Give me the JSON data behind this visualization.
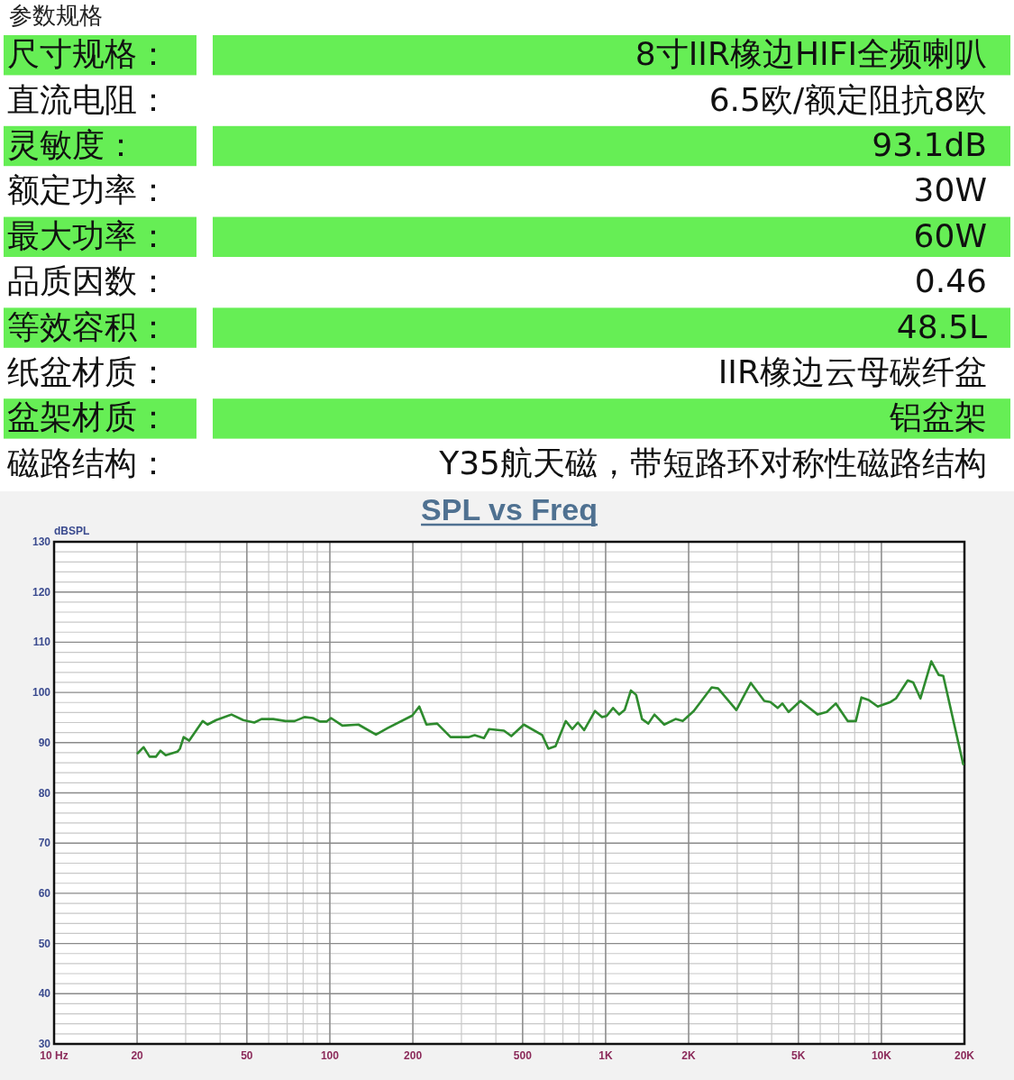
{
  "chart_data": [
    {
      "type": "other",
      "title": "参数规格",
      "annotations": [
        "尺寸规格：",
        "8寸IIR橡边HIFI全频喇叭",
        "直流电阻：",
        "6.5欧/额定阻抗8欧",
        "灵敏度：",
        "93.1dB",
        "额定功率：",
        "30W",
        "最大功率：",
        "60W",
        "品质因数：",
        "0.46",
        "等效容积：",
        "48.5L",
        "纸盆材质：",
        "IIR橡边云母碳纤盆",
        "盆架材质：",
        "铝盆架",
        "磁路结构：",
        "Y35航天磁，带短路环对称性磁路结构"
      ],
      "colors": [
        "#66ee55",
        null,
        "#66ee55",
        null,
        "#66ee55",
        null,
        "#66ee55",
        null,
        "#66ee55",
        null
      ]
    },
    {
      "type": "line",
      "title": "SPL vs Freq",
      "ylabel": "dBSPL",
      "log": "x",
      "grid": true,
      "xlim": [
        10,
        20000
      ],
      "ylim": [
        30,
        130
      ],
      "xticks": [
        {
          "value": 10,
          "label": "10 Hz"
        },
        20,
        50,
        100,
        200,
        500,
        {
          "value": 1000,
          "label": "1K"
        },
        {
          "value": 2000,
          "label": "2K"
        },
        {
          "value": 5000,
          "label": "5K"
        },
        {
          "value": 10000,
          "label": "10K"
        },
        {
          "value": 20000,
          "label": "20K"
        }
      ],
      "yticks": [
        30,
        40,
        50,
        60,
        70,
        80,
        90,
        100,
        110,
        120,
        130
      ],
      "series": [
        {
          "color": "#2e8b2e",
          "x": [
            20.1,
            21.1,
            22.2,
            23.4,
            24.3,
            25.4,
            28,
            28.6,
            29.5,
            30.9,
            34.6,
            36,
            38.7,
            44,
            48.5,
            53.2,
            56.5,
            62.3,
            69.1,
            74.5,
            80.9,
            86.7,
            92.1,
            97.2,
            101,
            111,
            127,
            147,
            162,
            199,
            211,
            224,
            245,
            274,
            318,
            335,
            362,
            378,
            428,
            455,
            505,
            589,
            620,
            658,
            717,
            757,
            793,
            836,
            915,
            971,
            1008,
            1064,
            1120,
            1172,
            1235,
            1290,
            1355,
            1428,
            1503,
            1631,
            1793,
            1903,
            2087,
            2424,
            2557,
            2979,
            3360,
            3760,
            3958,
            4206,
            4372,
            4607,
            5085,
            5876,
            6335,
            6833,
            7545,
            8077,
            8466,
            8991,
            9701,
            10790,
            11290,
            12460,
            13040,
            13850,
            15170,
            16130,
            16760,
            19800
          ],
          "values": [
            87.9,
            89.1,
            87.2,
            87.2,
            88.4,
            87.5,
            88.2,
            88.8,
            91.1,
            90.4,
            94.3,
            93.6,
            94.5,
            95.6,
            94.5,
            94.0,
            94.7,
            94.7,
            94.3,
            94.3,
            95.1,
            94.9,
            94.2,
            94.2,
            94.9,
            93.4,
            93.6,
            91.6,
            92.9,
            95.4,
            97.2,
            93.6,
            93.8,
            91.1,
            91.1,
            91.5,
            90.9,
            92.7,
            92.4,
            91.3,
            93.6,
            91.5,
            88.8,
            89.3,
            94.3,
            92.7,
            94.0,
            92.5,
            96.3,
            95.1,
            95.3,
            96.9,
            95.6,
            96.5,
            100.4,
            99.5,
            94.7,
            93.8,
            95.6,
            93.6,
            94.7,
            94.3,
            96.3,
            101.0,
            100.8,
            96.5,
            101.9,
            98.3,
            98.1,
            96.9,
            97.8,
            96.1,
            98.3,
            95.6,
            96.1,
            97.8,
            94.3,
            94.3,
            99.0,
            98.5,
            97.2,
            98.1,
            98.8,
            102.4,
            102.0,
            98.8,
            106.2,
            103.5,
            103.3,
            85.7
          ]
        }
      ]
    }
  ]
}
